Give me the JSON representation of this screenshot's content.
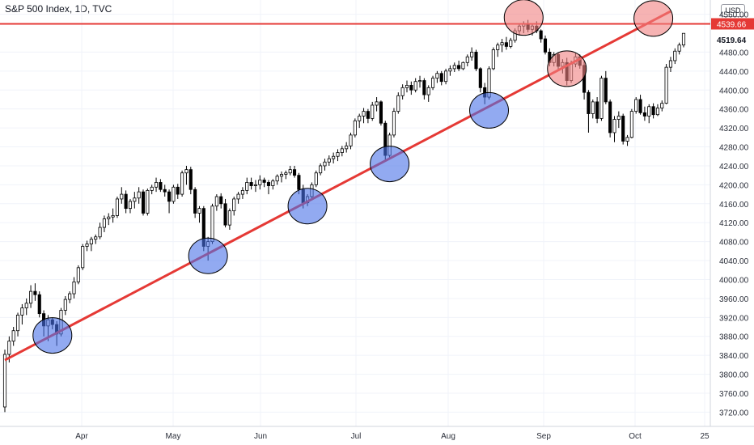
{
  "header": {
    "title": "S&P 500 Index, 1D, TVC",
    "currency": "USD"
  },
  "colors": {
    "up": "#000000",
    "upFill": "#ffffff",
    "down": "#000000",
    "line": "#e53935",
    "support": "#4a72e8",
    "resistance": "#f08080",
    "grid": "#f0f3fa",
    "axis": "#2a2e39"
  },
  "chart_data": {
    "type": "candlestick",
    "title": "S&P 500 Index, 1D, TVC",
    "ylim": [
      3690,
      4590
    ],
    "y_ticks": [
      3720,
      3760,
      3800,
      3840,
      3880,
      3920,
      3960,
      4000,
      4040,
      4080,
      4120,
      4160,
      4200,
      4240,
      4280,
      4320,
      4360,
      4400,
      4440,
      4480,
      4519.64,
      4539.66,
      4560
    ],
    "x_ticks": [
      "Apr",
      "May",
      "Jun",
      "Jul",
      "Aug",
      "Sep",
      "Oct",
      "25"
    ],
    "resistance_level": 4539.66,
    "last_price_label": "4519.64",
    "highlight_price_label": "4539.66",
    "trendline": {
      "start": {
        "bar": 0,
        "price": 3830
      },
      "end": {
        "bar": 150,
        "price": 4547
      }
    },
    "support_touches": [
      {
        "bar": 11,
        "price": 3882
      },
      {
        "bar": 47,
        "price": 4050
      },
      {
        "bar": 70,
        "price": 4155
      },
      {
        "bar": 89,
        "price": 4244
      },
      {
        "bar": 112,
        "price": 4357
      }
    ],
    "resistance_touches": [
      {
        "bar": 120,
        "price": 4553
      },
      {
        "bar": 130,
        "price": 4445
      },
      {
        "bar": 150,
        "price": 4551
      }
    ],
    "candles": [
      [
        3731,
        3852,
        3720,
        3842
      ],
      [
        3842,
        3880,
        3825,
        3870
      ],
      [
        3870,
        3900,
        3860,
        3892
      ],
      [
        3892,
        3930,
        3880,
        3925
      ],
      [
        3925,
        3948,
        3905,
        3940
      ],
      [
        3940,
        3960,
        3925,
        3950
      ],
      [
        3950,
        3988,
        3940,
        3975
      ],
      [
        3975,
        3992,
        3955,
        3968
      ],
      [
        3968,
        3975,
        3920,
        3928
      ],
      [
        3928,
        3935,
        3880,
        3902
      ],
      [
        3902,
        3925,
        3870,
        3915
      ],
      [
        3915,
        3920,
        3895,
        3905
      ],
      [
        3905,
        3912,
        3860,
        3885
      ],
      [
        3885,
        3940,
        3880,
        3935
      ],
      [
        3935,
        3965,
        3925,
        3958
      ],
      [
        3958,
        3975,
        3950,
        3970
      ],
      [
        3970,
        4005,
        3960,
        3995
      ],
      [
        3995,
        4030,
        3990,
        4025
      ],
      [
        4025,
        4075,
        4020,
        4070
      ],
      [
        4070,
        4082,
        4060,
        4075
      ],
      [
        4075,
        4090,
        4060,
        4085
      ],
      [
        4085,
        4095,
        4075,
        4090
      ],
      [
        4090,
        4120,
        4085,
        4110
      ],
      [
        4110,
        4135,
        4100,
        4128
      ],
      [
        4128,
        4140,
        4115,
        4132
      ],
      [
        4132,
        4150,
        4120,
        4135
      ],
      [
        4135,
        4175,
        4130,
        4170
      ],
      [
        4170,
        4195,
        4160,
        4180
      ],
      [
        4180,
        4188,
        4140,
        4150
      ],
      [
        4150,
        4170,
        4140,
        4165
      ],
      [
        4165,
        4185,
        4150,
        4172
      ],
      [
        4172,
        4195,
        4160,
        4185
      ],
      [
        4185,
        4190,
        4135,
        4140
      ],
      [
        4140,
        4192,
        4135,
        4188
      ],
      [
        4188,
        4200,
        4180,
        4195
      ],
      [
        4195,
        4215,
        4185,
        4205
      ],
      [
        4205,
        4212,
        4185,
        4190
      ],
      [
        4190,
        4200,
        4175,
        4185
      ],
      [
        4185,
        4190,
        4140,
        4165
      ],
      [
        4165,
        4200,
        4160,
        4195
      ],
      [
        4195,
        4202,
        4170,
        4180
      ],
      [
        4180,
        4230,
        4175,
        4225
      ],
      [
        4225,
        4240,
        4200,
        4232
      ],
      [
        4232,
        4238,
        4180,
        4190
      ],
      [
        4190,
        4195,
        4130,
        4140
      ],
      [
        4140,
        4155,
        4120,
        4150
      ],
      [
        4150,
        4155,
        4060,
        4070
      ],
      [
        4070,
        4090,
        4040,
        4080
      ],
      [
        4080,
        4160,
        4075,
        4155
      ],
      [
        4155,
        4180,
        4145,
        4175
      ],
      [
        4175,
        4182,
        4150,
        4160
      ],
      [
        4160,
        4170,
        4110,
        4115
      ],
      [
        4115,
        4150,
        4105,
        4145
      ],
      [
        4145,
        4175,
        4135,
        4170
      ],
      [
        4170,
        4185,
        4160,
        4180
      ],
      [
        4180,
        4195,
        4170,
        4188
      ],
      [
        4188,
        4215,
        4180,
        4205
      ],
      [
        4205,
        4215,
        4190,
        4198
      ],
      [
        4198,
        4210,
        4185,
        4200
      ],
      [
        4200,
        4220,
        4190,
        4210
      ],
      [
        4210,
        4215,
        4195,
        4205
      ],
      [
        4205,
        4210,
        4180,
        4198
      ],
      [
        4198,
        4212,
        4190,
        4208
      ],
      [
        4208,
        4222,
        4200,
        4218
      ],
      [
        4218,
        4228,
        4205,
        4222
      ],
      [
        4222,
        4230,
        4212,
        4225
      ],
      [
        4225,
        4240,
        4220,
        4232
      ],
      [
        4232,
        4240,
        4215,
        4220
      ],
      [
        4220,
        4225,
        4180,
        4190
      ],
      [
        4190,
        4200,
        4150,
        4162
      ],
      [
        4162,
        4180,
        4155,
        4175
      ],
      [
        4175,
        4205,
        4170,
        4200
      ],
      [
        4200,
        4230,
        4195,
        4225
      ],
      [
        4225,
        4245,
        4220,
        4240
      ],
      [
        4240,
        4255,
        4230,
        4248
      ],
      [
        4248,
        4262,
        4240,
        4255
      ],
      [
        4255,
        4268,
        4245,
        4260
      ],
      [
        4260,
        4275,
        4250,
        4268
      ],
      [
        4268,
        4282,
        4260,
        4276
      ],
      [
        4276,
        4290,
        4268,
        4282
      ],
      [
        4282,
        4310,
        4275,
        4305
      ],
      [
        4305,
        4340,
        4300,
        4335
      ],
      [
        4335,
        4350,
        4320,
        4345
      ],
      [
        4345,
        4362,
        4330,
        4355
      ],
      [
        4355,
        4360,
        4330,
        4340
      ],
      [
        4340,
        4375,
        4335,
        4368
      ],
      [
        4368,
        4385,
        4355,
        4375
      ],
      [
        4375,
        4378,
        4325,
        4330
      ],
      [
        4330,
        4335,
        4250,
        4262
      ],
      [
        4262,
        4310,
        4255,
        4305
      ],
      [
        4305,
        4362,
        4300,
        4355
      ],
      [
        4355,
        4395,
        4350,
        4388
      ],
      [
        4388,
        4412,
        4380,
        4405
      ],
      [
        4405,
        4420,
        4395,
        4410
      ],
      [
        4410,
        4418,
        4390,
        4400
      ],
      [
        4400,
        4425,
        4395,
        4418
      ],
      [
        4418,
        4430,
        4405,
        4420
      ],
      [
        4420,
        4425,
        4380,
        4390
      ],
      [
        4390,
        4410,
        4375,
        4405
      ],
      [
        4405,
        4430,
        4400,
        4425
      ],
      [
        4425,
        4440,
        4415,
        4435
      ],
      [
        4435,
        4440,
        4410,
        4418
      ],
      [
        4418,
        4445,
        4412,
        4440
      ],
      [
        4440,
        4452,
        4430,
        4445
      ],
      [
        4445,
        4458,
        4438,
        4452
      ],
      [
        4452,
        4462,
        4440,
        4445
      ],
      [
        4445,
        4460,
        4442,
        4458
      ],
      [
        4458,
        4475,
        4450,
        4470
      ],
      [
        4470,
        4490,
        4462,
        4480
      ],
      [
        4480,
        4485,
        4440,
        4445
      ],
      [
        4445,
        4448,
        4395,
        4405
      ],
      [
        4405,
        4415,
        4370,
        4385
      ],
      [
        4385,
        4450,
        4380,
        4445
      ],
      [
        4445,
        4490,
        4442,
        4485
      ],
      [
        4485,
        4500,
        4470,
        4495
      ],
      [
        4495,
        4508,
        4480,
        4500
      ],
      [
        4500,
        4512,
        4485,
        4492
      ],
      [
        4492,
        4510,
        4488,
        4505
      ],
      [
        4505,
        4530,
        4500,
        4525
      ],
      [
        4525,
        4540,
        4515,
        4535
      ],
      [
        4535,
        4545,
        4520,
        4540
      ],
      [
        4540,
        4548,
        4522,
        4528
      ],
      [
        4528,
        4540,
        4515,
        4535
      ],
      [
        4535,
        4545,
        4520,
        4525
      ],
      [
        4525,
        4528,
        4500,
        4508
      ],
      [
        4508,
        4515,
        4475,
        4480
      ],
      [
        4480,
        4488,
        4450,
        4458
      ],
      [
        4458,
        4480,
        4450,
        4475
      ],
      [
        4475,
        4480,
        4440,
        4450
      ],
      [
        4450,
        4465,
        4435,
        4458
      ],
      [
        4458,
        4468,
        4410,
        4420
      ],
      [
        4420,
        4462,
        4415,
        4455
      ],
      [
        4455,
        4478,
        4448,
        4470
      ],
      [
        4470,
        4475,
        4445,
        4452
      ],
      [
        4452,
        4460,
        4380,
        4395
      ],
      [
        4395,
        4400,
        4310,
        4350
      ],
      [
        4350,
        4380,
        4340,
        4375
      ],
      [
        4375,
        4385,
        4330,
        4340
      ],
      [
        4340,
        4430,
        4335,
        4425
      ],
      [
        4425,
        4440,
        4370,
        4375
      ],
      [
        4375,
        4380,
        4300,
        4310
      ],
      [
        4310,
        4345,
        4290,
        4338
      ],
      [
        4338,
        4355,
        4320,
        4345
      ],
      [
        4345,
        4350,
        4285,
        4292
      ],
      [
        4292,
        4305,
        4282,
        4300
      ],
      [
        4300,
        4360,
        4298,
        4355
      ],
      [
        4355,
        4385,
        4350,
        4380
      ],
      [
        4380,
        4390,
        4348,
        4352
      ],
      [
        4352,
        4365,
        4335,
        4345
      ],
      [
        4345,
        4370,
        4330,
        4365
      ],
      [
        4365,
        4372,
        4340,
        4348
      ],
      [
        4348,
        4370,
        4345,
        4362
      ],
      [
        4362,
        4378,
        4355,
        4372
      ],
      [
        4372,
        4455,
        4370,
        4448
      ],
      [
        4448,
        4470,
        4438,
        4462
      ],
      [
        4462,
        4488,
        4455,
        4482
      ],
      [
        4482,
        4500,
        4475,
        4495
      ],
      [
        4495,
        4520,
        4490,
        4519.64
      ]
    ]
  }
}
